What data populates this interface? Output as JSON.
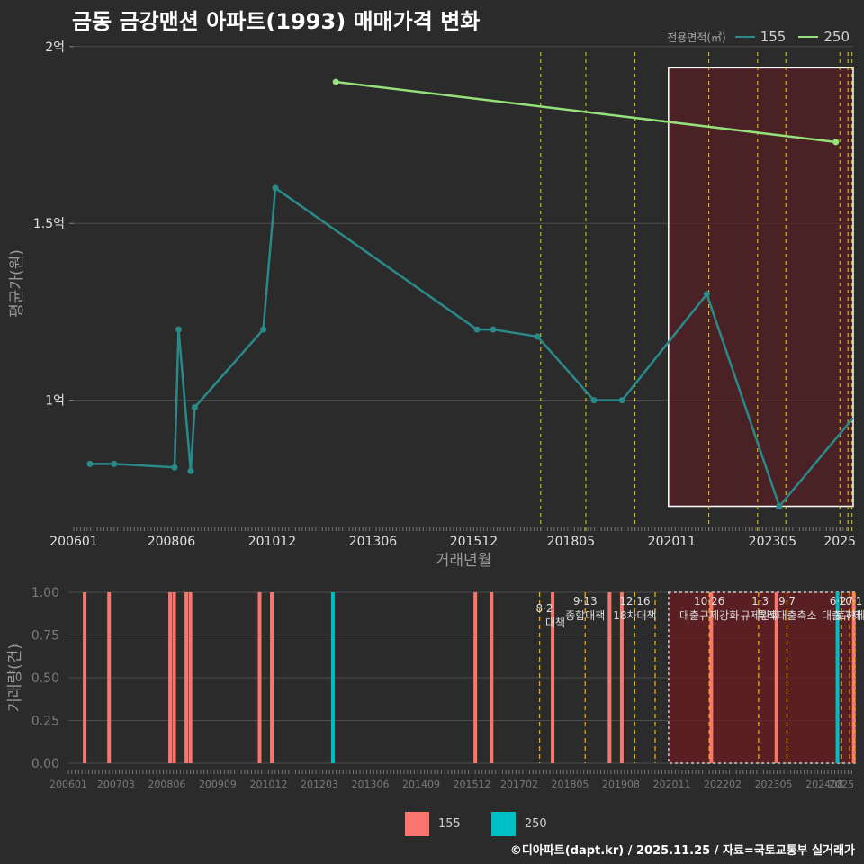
{
  "title": "금동 금강맨션 아파트(1993) 매매가격 변화",
  "legend": {
    "title": "전용면적(㎡)",
    "items": [
      {
        "label": "155",
        "line_color": "#2a8a8a",
        "bar_color": "#f8766d"
      },
      {
        "label": "250",
        "line_color": "#95e17b",
        "bar_color": "#00bfc4"
      }
    ]
  },
  "footer": "©디아파트(dapt.kr) / 2025.11.25 / 자료=국토교통부 실거래가",
  "chart_data": [
    {
      "type": "line",
      "xlabel": "거래년월",
      "ylabel": "평균가(원)",
      "ylim": [
        0.63,
        2.03
      ],
      "y_unit": "억",
      "yticks": [
        {
          "value": 1.0,
          "label": "1억"
        },
        {
          "value": 1.5,
          "label": "1.5억"
        },
        {
          "value": 2.0,
          "label": "2억"
        }
      ],
      "xlim": [
        2006.0,
        2025.33
      ],
      "xticks": [
        {
          "value": 2006.0,
          "label": "200601"
        },
        {
          "value": 2008.42,
          "label": "200806"
        },
        {
          "value": 2010.92,
          "label": "201012"
        },
        {
          "value": 2013.42,
          "label": "201306"
        },
        {
          "value": 2015.92,
          "label": "201512"
        },
        {
          "value": 2018.33,
          "label": "201805"
        },
        {
          "value": 2020.83,
          "label": "202011"
        },
        {
          "value": 2023.33,
          "label": "202305"
        },
        {
          "value": 2025.0,
          "label": "2025"
        }
      ],
      "series": [
        {
          "name": "155",
          "color": "#2a8a8a",
          "x": [
            2006.4,
            2007.0,
            2008.5,
            2008.6,
            2008.9,
            2009.0,
            2010.7,
            2011.0,
            2016.0,
            2016.4,
            2017.5,
            2018.9,
            2019.6,
            2021.7,
            2023.5,
            2025.33
          ],
          "y": [
            0.82,
            0.82,
            0.81,
            1.2,
            0.8,
            0.98,
            1.2,
            1.6,
            1.2,
            1.2,
            1.18,
            1.0,
            1.0,
            1.3,
            0.7,
            0.95
          ]
        },
        {
          "name": "250",
          "color": "#95e17b",
          "x": [
            2012.5,
            2024.9
          ],
          "y": [
            1.9,
            1.73
          ]
        }
      ],
      "policy_lines": [
        2017.58,
        2018.7,
        2019.92,
        2021.75,
        2022.96,
        2023.66,
        2025.0,
        2025.2,
        2025.3
      ],
      "highlight": {
        "x_from": 2020.75,
        "x_to": 2025.33,
        "y_from": 0.7,
        "y_to": 1.94
      }
    },
    {
      "type": "bar",
      "ylabel": "거래량(건)",
      "ylim": [
        0,
        1
      ],
      "yticks": [
        {
          "value": 0.0,
          "label": "0.00"
        },
        {
          "value": 0.25,
          "label": "0.25"
        },
        {
          "value": 0.5,
          "label": "0.50"
        },
        {
          "value": 0.75,
          "label": "0.75"
        },
        {
          "value": 1.0,
          "label": "1.00"
        }
      ],
      "xlim": [
        2006.0,
        2025.33
      ],
      "xticks": [
        {
          "value": 2006.0,
          "label": "200601"
        },
        {
          "value": 2007.17,
          "label": "200703"
        },
        {
          "value": 2008.42,
          "label": "200806"
        },
        {
          "value": 2009.67,
          "label": "200909"
        },
        {
          "value": 2010.92,
          "label": "201012"
        },
        {
          "value": 2012.17,
          "label": "201203"
        },
        {
          "value": 2013.42,
          "label": "201306"
        },
        {
          "value": 2014.67,
          "label": "201409"
        },
        {
          "value": 2015.92,
          "label": "201512"
        },
        {
          "value": 2017.08,
          "label": "201702"
        },
        {
          "value": 2018.33,
          "label": "201805"
        },
        {
          "value": 2019.58,
          "label": "201908"
        },
        {
          "value": 2020.83,
          "label": "202011"
        },
        {
          "value": 2022.08,
          "label": "202202"
        },
        {
          "value": 2023.33,
          "label": "202305"
        },
        {
          "value": 2024.58,
          "label": "202408"
        },
        {
          "value": 2025.0,
          "label": "2025"
        }
      ],
      "bars": [
        {
          "x": 2006.4,
          "value": 1,
          "series": "155"
        },
        {
          "x": 2007.0,
          "value": 1,
          "series": "155"
        },
        {
          "x": 2008.5,
          "value": 1,
          "series": "155"
        },
        {
          "x": 2008.6,
          "value": 1,
          "series": "155"
        },
        {
          "x": 2008.9,
          "value": 1,
          "series": "155"
        },
        {
          "x": 2009.0,
          "value": 1,
          "series": "155"
        },
        {
          "x": 2010.7,
          "value": 1,
          "series": "155"
        },
        {
          "x": 2011.0,
          "value": 1,
          "series": "155"
        },
        {
          "x": 2012.5,
          "value": 1,
          "series": "250"
        },
        {
          "x": 2016.0,
          "value": 1,
          "series": "155"
        },
        {
          "x": 2016.4,
          "value": 1,
          "series": "155"
        },
        {
          "x": 2017.9,
          "value": 1,
          "series": "155"
        },
        {
          "x": 2019.3,
          "value": 1,
          "series": "155"
        },
        {
          "x": 2019.6,
          "value": 1,
          "series": "155"
        },
        {
          "x": 2021.8,
          "value": 1,
          "series": "155"
        },
        {
          "x": 2023.4,
          "value": 1,
          "series": "155"
        },
        {
          "x": 2024.9,
          "value": 1,
          "series": "250"
        },
        {
          "x": 2025.3,
          "value": 1,
          "series": "155"
        }
      ],
      "policy_lines": [
        2017.58,
        2018.7,
        2019.92,
        2020.42,
        2021.75,
        2022.96,
        2023.66,
        2025.0,
        2025.2,
        2025.3
      ],
      "annotations": [
        {
          "x": 2017.7,
          "date": "8·2",
          "label": "대책"
        },
        {
          "x": 2018.7,
          "date": "9·13",
          "label": "종합대책"
        },
        {
          "x": 2019.92,
          "date": "12·16",
          "label": "18차대책"
        },
        {
          "x": 2021.75,
          "date": "10·26",
          "label": "대출규제강화"
        },
        {
          "x": 2023.0,
          "date": "1·3",
          "label": "규제완화"
        },
        {
          "x": 2023.66,
          "date": "9·7",
          "label": "특례대출축소"
        },
        {
          "x": 2025.0,
          "date": "6·27",
          "label": "대출규제"
        },
        {
          "x": 2025.22,
          "date": "10·1",
          "label": "토허제"
        }
      ],
      "highlight": {
        "x_from": 2020.75,
        "x_to": 2025.33
      }
    }
  ]
}
